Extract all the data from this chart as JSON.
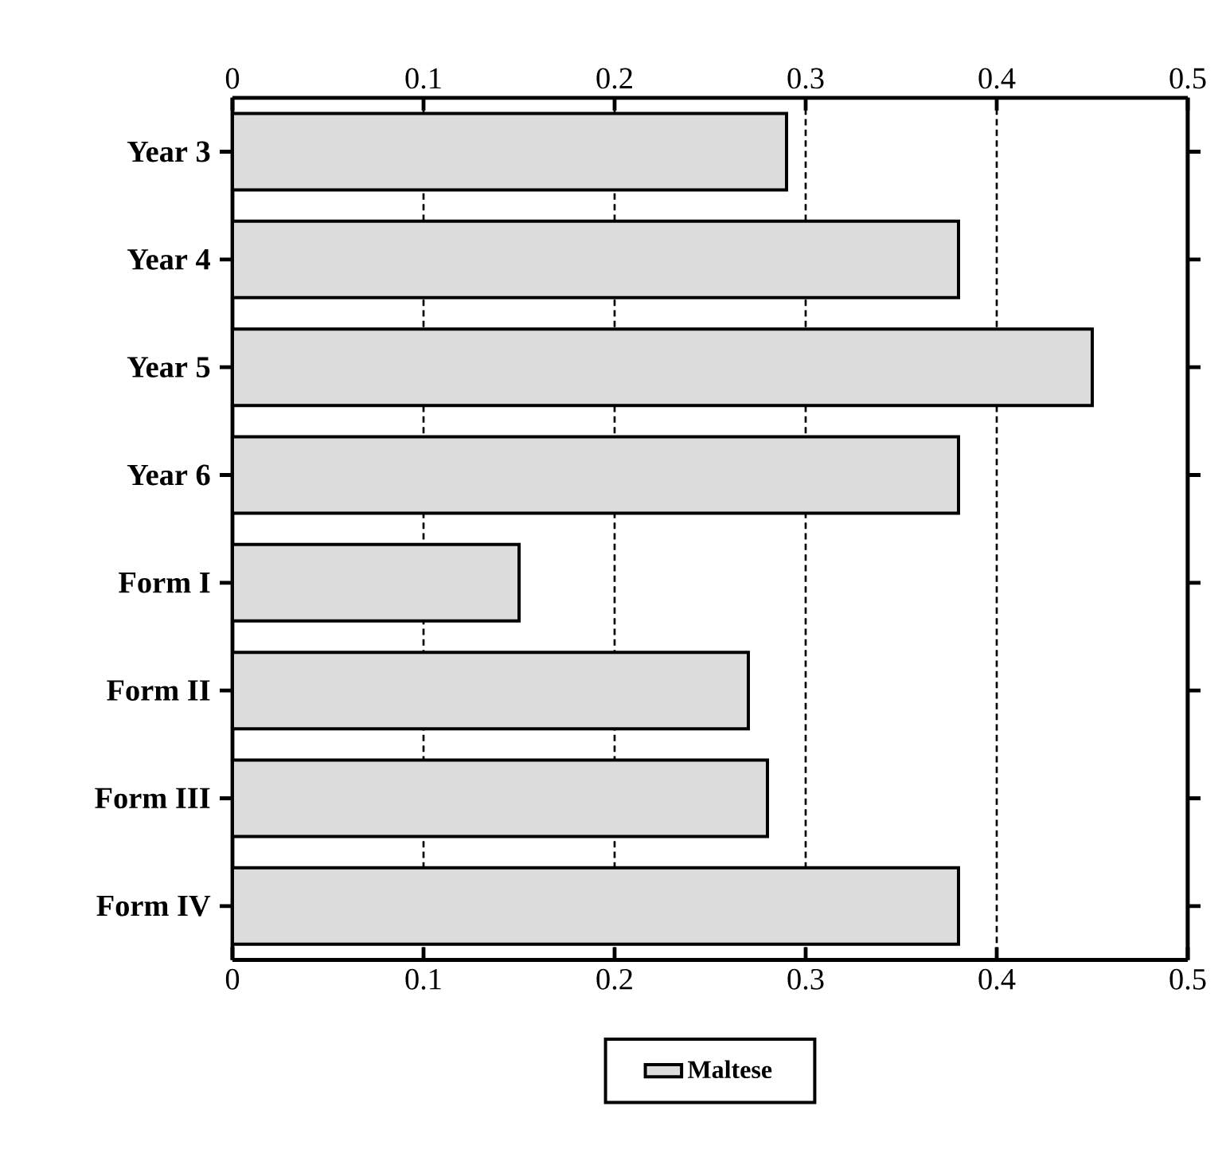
{
  "chart_data": {
    "type": "bar",
    "orientation": "horizontal",
    "categories": [
      "Year 3",
      "Year 4",
      "Year 5",
      "Year 6",
      "Form I",
      "Form II",
      "Form III",
      "Form IV"
    ],
    "series": [
      {
        "name": "Maltese",
        "color": "#dcdcdc",
        "values": [
          0.29,
          0.38,
          0.45,
          0.38,
          0.15,
          0.27,
          0.28,
          0.38
        ]
      }
    ],
    "xlim": [
      0,
      0.5
    ],
    "xticks": [
      0,
      0.1,
      0.2,
      0.3,
      0.4,
      0.5
    ],
    "x2lim": [
      0,
      0.5
    ],
    "x2ticks": [
      0,
      0.1,
      0.2,
      0.3,
      0.4,
      0.5
    ],
    "grid": "x",
    "legend": "bottom"
  }
}
